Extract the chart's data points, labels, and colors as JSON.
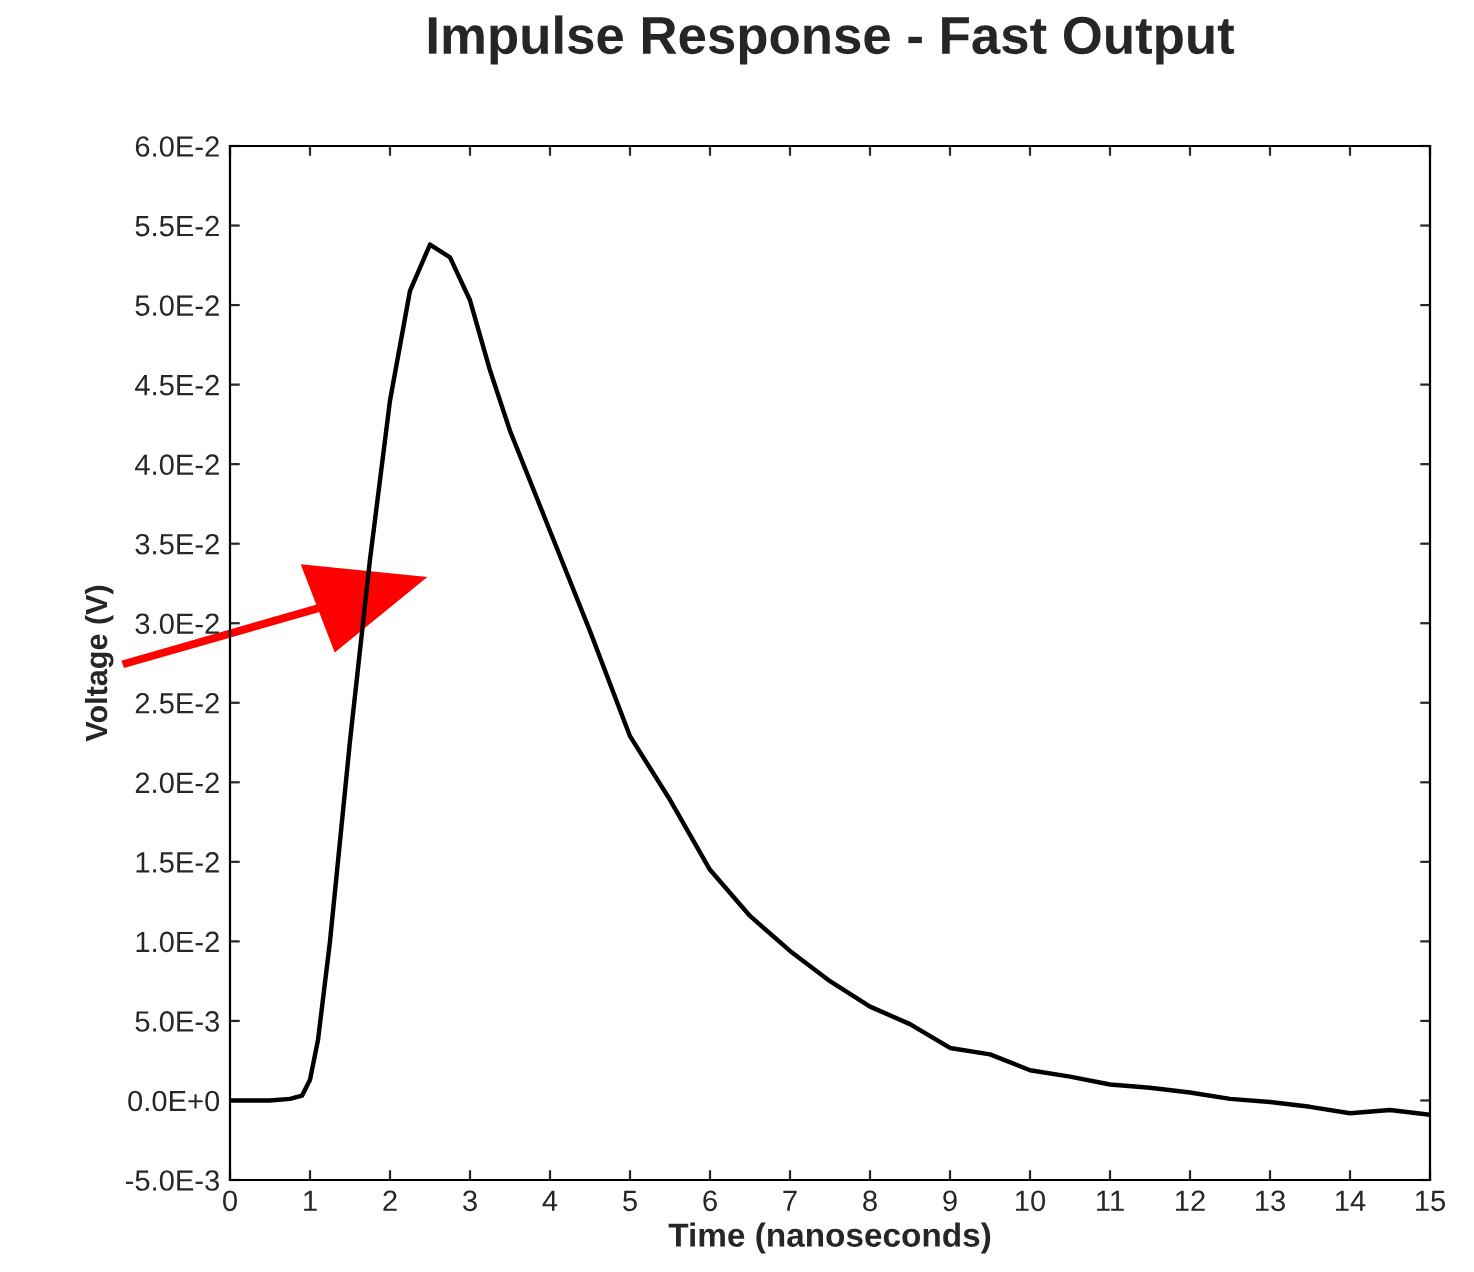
{
  "chart_data": {
    "type": "line",
    "title": "Impulse Response - Fast Output",
    "xlabel": "Time (nanoseconds)",
    "ylabel": "Voltage (V)",
    "x": [
      0,
      0.5,
      0.75,
      0.9,
      1.0,
      1.1,
      1.25,
      1.5,
      1.75,
      2.0,
      2.25,
      2.5,
      2.75,
      3.0,
      3.25,
      3.5,
      4.0,
      4.5,
      5.0,
      5.5,
      6.0,
      6.5,
      7.0,
      7.5,
      8.0,
      8.5,
      9.0,
      9.5,
      10,
      10.5,
      11,
      11.5,
      12,
      12.5,
      13,
      13.5,
      14,
      14.5,
      15
    ],
    "series": [
      {
        "color": "#000000",
        "values": [
          0,
          0,
          0.0001,
          0.0003,
          0.0013,
          0.0038,
          0.01,
          0.0226,
          0.034,
          0.044,
          0.0509,
          0.0538,
          0.053,
          0.0503,
          0.0459,
          0.0421,
          0.0358,
          0.0295,
          0.0229,
          0.0189,
          0.0145,
          0.0116,
          0.0094,
          0.0075,
          0.0059,
          0.0048,
          0.0033,
          0.0029,
          0.0019,
          0.0015,
          0.001,
          0.0008,
          0.0005,
          0.0001,
          -0.0001,
          -0.0004,
          -0.0008,
          -0.0006,
          -0.0009
        ]
      }
    ],
    "xlim": [
      0,
      15
    ],
    "xticks": [
      0,
      1,
      2,
      3,
      4,
      5,
      6,
      7,
      8,
      9,
      10,
      11,
      12,
      13,
      14,
      15
    ],
    "ylim": [
      -0.005,
      0.06
    ],
    "yticks": [
      {
        "value": -0.005,
        "label": "-5.0E-3"
      },
      {
        "value": 0,
        "label": "0.0E+0"
      },
      {
        "value": 0.005,
        "label": "5.0E-3"
      },
      {
        "value": 0.01,
        "label": "1.0E-2"
      },
      {
        "value": 0.015,
        "label": "1.5E-2"
      },
      {
        "value": 0.02,
        "label": "2.0E-2"
      },
      {
        "value": 0.025,
        "label": "2.5E-2"
      },
      {
        "value": 0.03,
        "label": "3.0E-2"
      },
      {
        "value": 0.035,
        "label": "3.5E-2"
      },
      {
        "value": 0.04,
        "label": "4.0E-2"
      },
      {
        "value": 0.045,
        "label": "4.5E-2"
      },
      {
        "value": 0.05,
        "label": "5.0E-2"
      },
      {
        "value": 0.055,
        "label": "5.5E-2"
      },
      {
        "value": 0.06,
        "label": "6.0E-2"
      }
    ],
    "grid": false,
    "marker": "none",
    "line_style": "solid"
  }
}
